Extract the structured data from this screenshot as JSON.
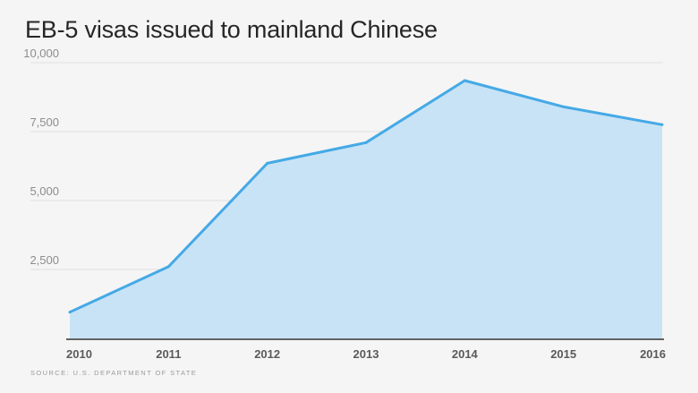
{
  "title": "EB-5 visas issued to mainland Chinese",
  "source": "SOURCE: U.S. DEPARTMENT OF STATE",
  "colors": {
    "line": "#45a9e6",
    "fill": "#c8e3f6",
    "grid": "#dedede",
    "background": "#f5f5f5"
  },
  "chart_data": {
    "type": "area",
    "title": "EB-5 visas issued to mainland Chinese",
    "x": [
      "2010",
      "2011",
      "2012",
      "2013",
      "2014",
      "2015",
      "2016"
    ],
    "series": [
      {
        "values": [
          950,
          2600,
          6350,
          7100,
          9350,
          8400,
          7750
        ]
      }
    ],
    "yticks": [
      2500,
      5000,
      7500,
      10000
    ],
    "ytick_labels": [
      "2,500",
      "5,000",
      "7,500",
      "10,000"
    ],
    "ylim": [
      0,
      10000
    ],
    "grid": true,
    "xlabel": "",
    "ylabel": ""
  }
}
